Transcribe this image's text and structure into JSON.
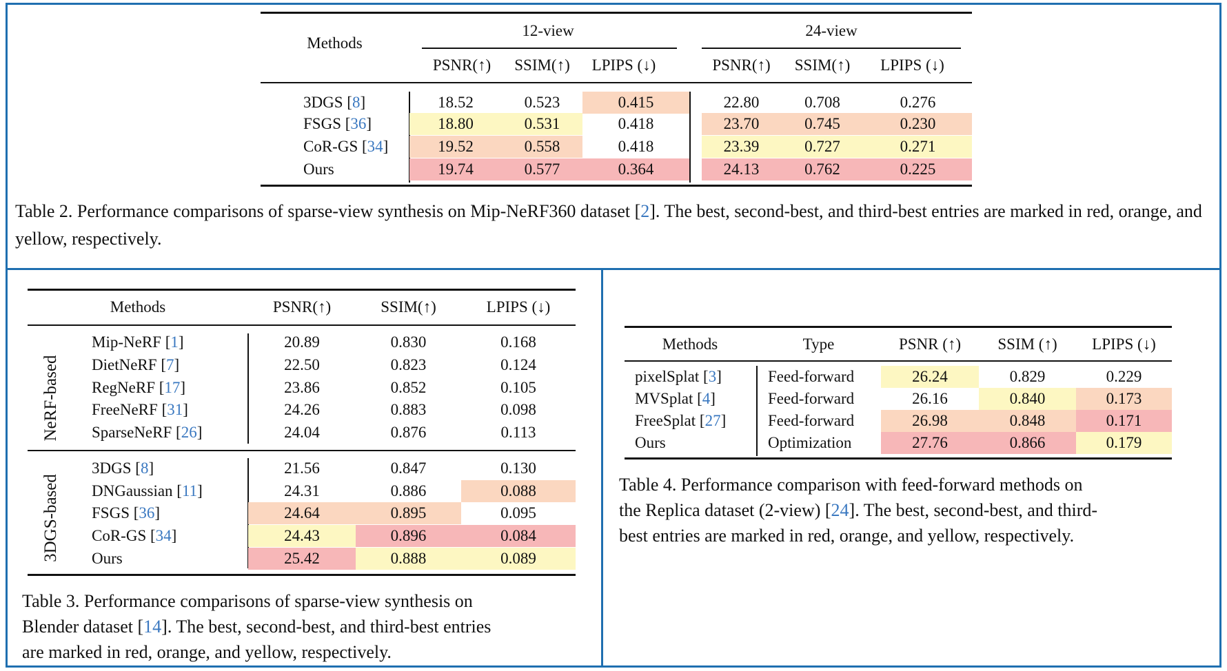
{
  "colors": {
    "frame": "#1f6fb0",
    "cite": "#3a78c0",
    "best": "#f7b7b8",
    "second": "#fbd7c0",
    "third": "#fdf7c2"
  },
  "table2": {
    "col_methods": "Methods",
    "group_12": "12-view",
    "group_24": "24-view",
    "metrics": [
      "PSNR(↑)",
      "SSIM(↑)",
      "LPIPS (↓)",
      "PSNR(↑)",
      "SSIM(↑)",
      "LPIPS (↓)"
    ],
    "rows": [
      {
        "name": "3DGS",
        "cite": "8",
        "values": [
          "18.52",
          "0.523",
          "0.415",
          "22.80",
          "0.708",
          "0.276"
        ],
        "colors": [
          "",
          "",
          "ora",
          "",
          "",
          ""
        ]
      },
      {
        "name": "FSGS",
        "cite": "36",
        "values": [
          "18.80",
          "0.531",
          "0.418",
          "23.70",
          "0.745",
          "0.230"
        ],
        "colors": [
          "yel",
          "yel",
          "",
          "ora",
          "ora",
          "ora"
        ]
      },
      {
        "name": "CoR-GS",
        "cite": "34",
        "values": [
          "19.52",
          "0.558",
          "0.418",
          "23.39",
          "0.727",
          "0.271"
        ],
        "colors": [
          "ora",
          "ora",
          "",
          "yel",
          "yel",
          "yel"
        ]
      },
      {
        "name": "Ours",
        "cite": "",
        "values": [
          "19.74",
          "0.577",
          "0.364",
          "24.13",
          "0.762",
          "0.225"
        ],
        "colors": [
          "red",
          "red",
          "red",
          "red",
          "red",
          "red"
        ]
      }
    ],
    "caption_pre": "Table 2.   Performance comparisons of sparse-view synthesis on Mip-NeRF360 dataset [",
    "caption_cite": "2",
    "caption_post": "].  The best, second-best, and third-best entries are marked in red, orange, and yellow, respectively."
  },
  "table3": {
    "col_methods": "Methods",
    "metrics": [
      "PSNR(↑)",
      "SSIM(↑)",
      "LPIPS (↓)"
    ],
    "group_nerf": "NeRF-based",
    "group_3dgs": "3DGS-based",
    "nerf_rows": [
      {
        "name": "Mip-NeRF",
        "cite": "1",
        "values": [
          "20.89",
          "0.830",
          "0.168"
        ],
        "colors": [
          "",
          "",
          ""
        ]
      },
      {
        "name": "DietNeRF",
        "cite": "7",
        "values": [
          "22.50",
          "0.823",
          "0.124"
        ],
        "colors": [
          "",
          "",
          ""
        ]
      },
      {
        "name": "RegNeRF",
        "cite": "17",
        "values": [
          "23.86",
          "0.852",
          "0.105"
        ],
        "colors": [
          "",
          "",
          ""
        ]
      },
      {
        "name": "FreeNeRF",
        "cite": "31",
        "values": [
          "24.26",
          "0.883",
          "0.098"
        ],
        "colors": [
          "",
          "",
          ""
        ]
      },
      {
        "name": "SparseNeRF",
        "cite": "26",
        "values": [
          "24.04",
          "0.876",
          "0.113"
        ],
        "colors": [
          "",
          "",
          ""
        ]
      }
    ],
    "gs_rows": [
      {
        "name": "3DGS",
        "cite": "8",
        "values": [
          "21.56",
          "0.847",
          "0.130"
        ],
        "colors": [
          "",
          "",
          ""
        ]
      },
      {
        "name": "DNGaussian",
        "cite": "11",
        "values": [
          "24.31",
          "0.886",
          "0.088"
        ],
        "colors": [
          "",
          "",
          "ora"
        ]
      },
      {
        "name": "FSGS",
        "cite": "36",
        "values": [
          "24.64",
          "0.895",
          "0.095"
        ],
        "colors": [
          "ora",
          "ora",
          ""
        ]
      },
      {
        "name": "CoR-GS",
        "cite": "34",
        "values": [
          "24.43",
          "0.896",
          "0.084"
        ],
        "colors": [
          "yel",
          "red",
          "red"
        ]
      },
      {
        "name": "Ours",
        "cite": "",
        "values": [
          "25.42",
          "0.888",
          "0.089"
        ],
        "colors": [
          "red",
          "yel",
          "yel"
        ]
      }
    ],
    "caption_line1": "Table 3.   Performance comparisons of sparse-view synthesis on",
    "caption_line2_pre": "Blender dataset [",
    "caption_cite": "14",
    "caption_line2_post": "]. The best, second-best, and third-best entries",
    "caption_line3": "are marked in red, orange, and yellow, respectively."
  },
  "table4": {
    "headers": [
      "Methods",
      "Type",
      "PSNR (↑)",
      "SSIM (↑)",
      "LPIPS (↓)"
    ],
    "rows": [
      {
        "name": "pixelSplat",
        "cite": "3",
        "type": "Feed-forward",
        "values": [
          "26.24",
          "0.829",
          "0.229"
        ],
        "colors": [
          "yel",
          "",
          ""
        ]
      },
      {
        "name": "MVSplat",
        "cite": "4",
        "type": "Feed-forward",
        "values": [
          "26.16",
          "0.840",
          "0.173"
        ],
        "colors": [
          "",
          "yel",
          "ora"
        ]
      },
      {
        "name": "FreeSplat",
        "cite": "27",
        "type": "Feed-forward",
        "values": [
          "26.98",
          "0.848",
          "0.171"
        ],
        "colors": [
          "ora",
          "ora",
          "red"
        ]
      },
      {
        "name": "Ours",
        "cite": "",
        "type": "Optimization",
        "values": [
          "27.76",
          "0.866",
          "0.179"
        ],
        "colors": [
          "red",
          "red",
          "yel"
        ]
      }
    ],
    "caption_line1": "Table 4.  Performance comparison with feed-forward methods on",
    "caption_line2_pre": "the Replica dataset (2-view) [",
    "caption_cite": "24",
    "caption_line2_post": "]. The best, second-best, and third-",
    "caption_line3": "best entries are marked in red, orange, and yellow, respectively."
  }
}
